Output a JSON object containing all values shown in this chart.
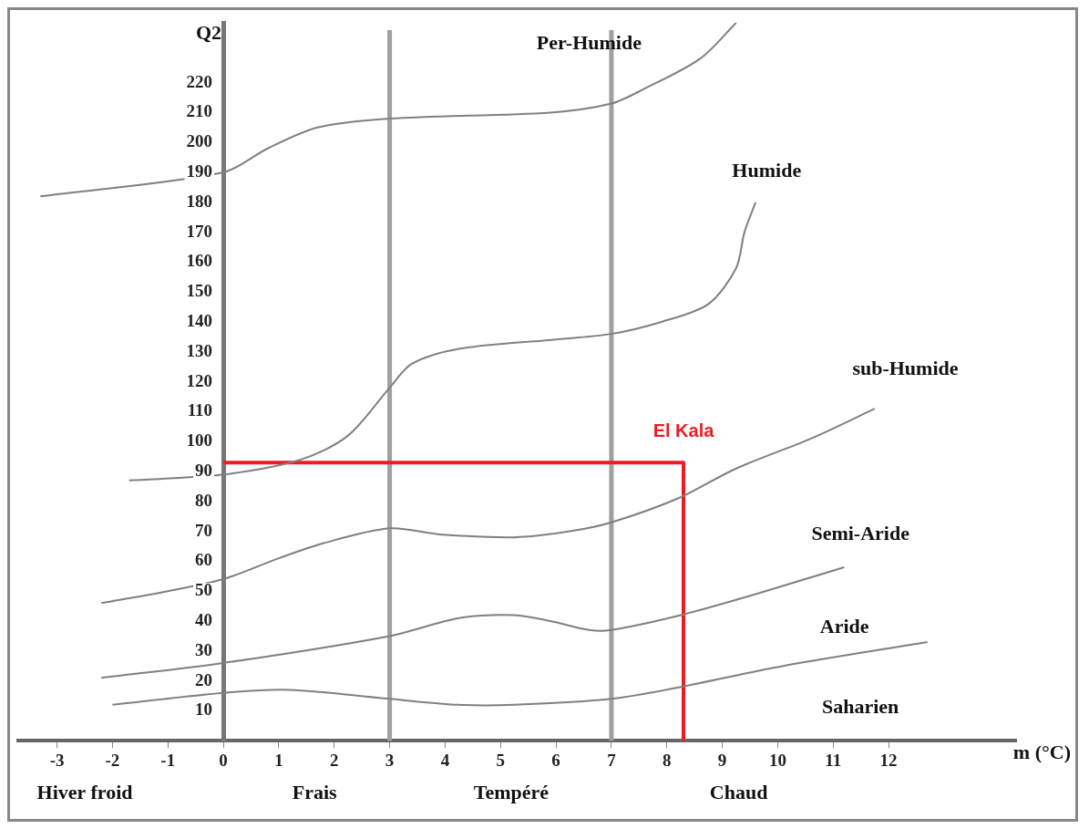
{
  "chart_data": {
    "type": "line",
    "xlabel": "m (°C)",
    "ylabel": "Q2",
    "xlim": [
      -3.7,
      14.3
    ],
    "xticks": [
      -3,
      -2,
      -1,
      0,
      1,
      2,
      3,
      4,
      5,
      6,
      7,
      8,
      9,
      10,
      11,
      12
    ],
    "ylim": [
      0,
      240
    ],
    "yticks": [
      10,
      20,
      30,
      40,
      50,
      60,
      70,
      80,
      90,
      100,
      110,
      120,
      130,
      140,
      150,
      160,
      170,
      180,
      190,
      200,
      210,
      220
    ],
    "grid": false,
    "legend": false,
    "marker": "none",
    "series": [
      {
        "color": "#808080",
        "x": [
          -3.3,
          0,
          0.8,
          1.7,
          3,
          5.9,
          7,
          7.6,
          8.6,
          9.25
        ],
        "values": [
          182,
          190,
          198,
          205,
          208,
          210,
          213,
          218,
          228,
          240
        ]
      },
      {
        "color": "#808080",
        "x": [
          -1.7,
          0,
          1.4,
          2.25,
          3,
          3.4,
          4.25,
          5.9,
          7,
          7.9,
          8.75,
          9.25,
          9.4,
          9.6
        ],
        "values": [
          87,
          89,
          94,
          102,
          118,
          126,
          131,
          134,
          136,
          140,
          146,
          158,
          170,
          180
        ]
      },
      {
        "color": "#808080",
        "x": [
          -2.2,
          -1,
          0,
          1,
          1.8,
          3,
          3.9,
          5.25,
          6.25,
          7,
          8.2,
          9.25,
          10.6,
          11.75
        ],
        "values": [
          46,
          50,
          54,
          61,
          66,
          71,
          69,
          68,
          70,
          73,
          81,
          91,
          101,
          111
        ]
      },
      {
        "color": "#808080",
        "x": [
          -2.2,
          0,
          3,
          4.25,
          5.25,
          5.9,
          6.6,
          7,
          8.25,
          9.6,
          11.2
        ],
        "values": [
          21,
          26,
          35,
          41,
          42,
          40,
          37,
          37,
          42,
          49,
          58
        ]
      },
      {
        "color": "#808080",
        "x": [
          -2,
          0,
          1.2,
          3,
          4.25,
          5.25,
          7,
          8.25,
          10.1,
          12.7
        ],
        "values": [
          12,
          16,
          17,
          14,
          12,
          12,
          14,
          18,
          25,
          33
        ]
      },
      {
        "name": "El Kala",
        "color": "#ed1c24",
        "x": [
          0,
          8.3,
          8.3
        ],
        "values": [
          93,
          93,
          0
        ]
      }
    ],
    "ref_lines": [
      {
        "axis": "x",
        "value": 3,
        "color": "#a0a0a0"
      },
      {
        "axis": "x",
        "value": 7,
        "color": "#a0a0a0"
      }
    ],
    "annotations": [
      "Per-Humide",
      "Humide",
      "sub-Humide",
      "Semi-Aride",
      "Aride",
      "Saharien",
      "Hiver froid",
      "Frais",
      "Tempéré",
      "Chaud"
    ]
  }
}
